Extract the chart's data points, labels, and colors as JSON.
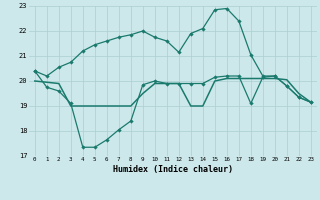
{
  "xlabel": "Humidex (Indice chaleur)",
  "x": [
    0,
    1,
    2,
    3,
    4,
    5,
    6,
    7,
    8,
    9,
    10,
    11,
    12,
    13,
    14,
    15,
    16,
    17,
    18,
    19,
    20,
    21,
    22,
    23
  ],
  "curve1": [
    20.4,
    20.2,
    20.55,
    20.75,
    21.2,
    21.45,
    21.6,
    21.75,
    21.85,
    22.0,
    21.75,
    21.6,
    21.15,
    21.9,
    22.1,
    22.85,
    22.9,
    22.4,
    21.05,
    20.2,
    20.2,
    19.8,
    19.35,
    19.15
  ],
  "curve2": [
    20.4,
    19.75,
    19.6,
    19.1,
    17.35,
    17.35,
    17.65,
    18.05,
    18.4,
    19.85,
    20.0,
    19.9,
    19.9,
    19.9,
    19.9,
    20.15,
    20.2,
    20.2,
    19.1,
    20.15,
    20.2,
    19.8,
    19.35,
    19.15
  ],
  "flat_line": [
    20.0,
    19.95,
    19.9,
    19.0,
    19.0,
    19.0,
    19.0,
    19.0,
    19.0,
    19.5,
    19.9,
    19.9,
    19.9,
    19.0,
    19.0,
    20.0,
    20.1,
    20.1,
    20.1,
    20.1,
    20.1,
    20.05,
    19.5,
    19.15
  ],
  "ylim": [
    17,
    23
  ],
  "yticks": [
    17,
    18,
    19,
    20,
    21,
    22,
    23
  ],
  "line_color": "#1a7a6e",
  "bg_color": "#cde8ea",
  "grid_color": "#aacfd2"
}
